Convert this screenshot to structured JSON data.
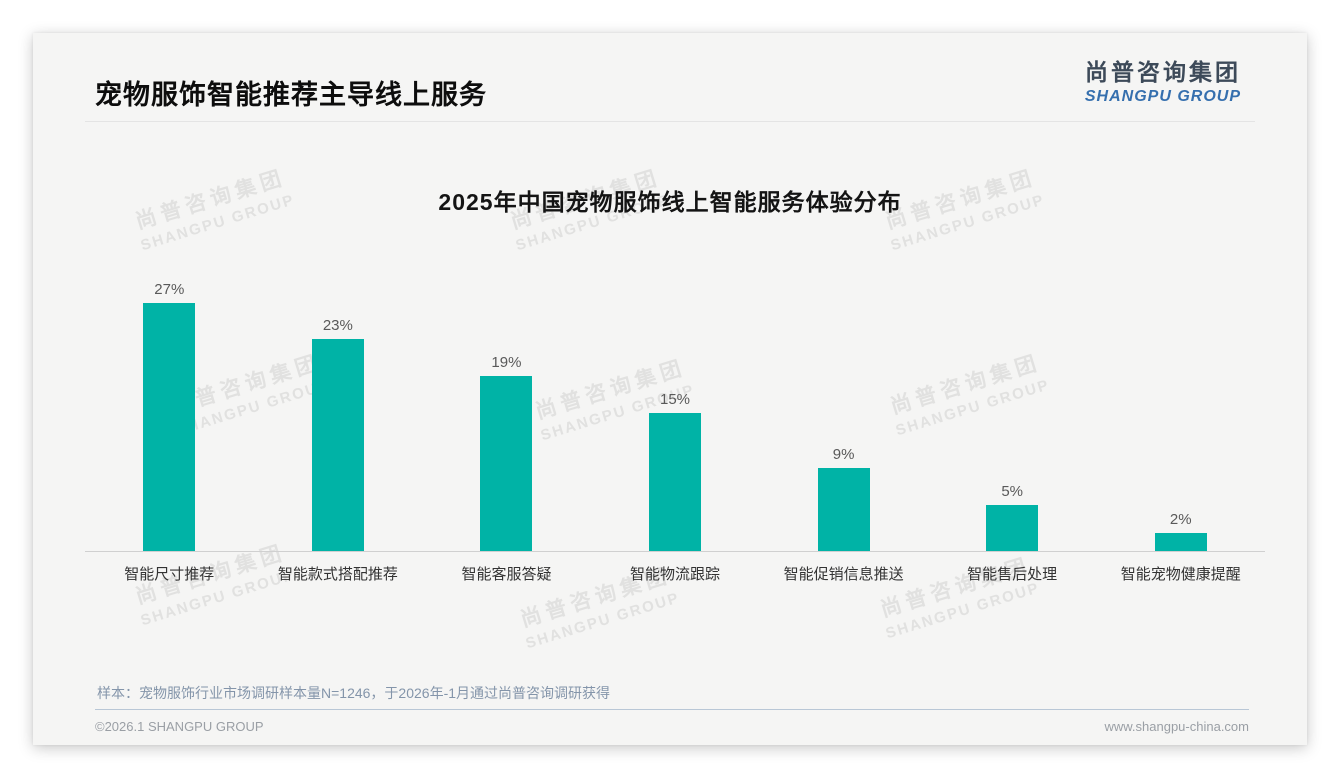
{
  "page": {
    "title": "宠物服饰智能推荐主导线上服务",
    "logo": {
      "cn": "尚普咨询集团",
      "en": "SHANGPU GROUP"
    },
    "watermark": {
      "cn": "尚普咨询集团",
      "en": "SHANGPU GROUP"
    },
    "note": "样本：宠物服饰行业市场调研样本量N=1246，于2026年-1月通过尚普咨询调研获得",
    "footer": {
      "left": "©2026.1 SHANGPU GROUP",
      "right": "www.shangpu-china.com"
    }
  },
  "chart_data": {
    "type": "bar",
    "title": "2025年中国宠物服饰线上智能服务体验分布",
    "categories": [
      "智能尺寸推荐",
      "智能款式搭配推荐",
      "智能客服答疑",
      "智能物流跟踪",
      "智能促销信息推送",
      "智能售后处理",
      "智能宠物健康提醒"
    ],
    "values": [
      27,
      23,
      19,
      15,
      9,
      5,
      2
    ],
    "value_labels": [
      "27%",
      "23%",
      "19%",
      "15%",
      "9%",
      "5%",
      "2%"
    ],
    "bar_color": "#00B3A6",
    "ylim": [
      0,
      30
    ],
    "grid": false,
    "legend": false,
    "xlabel": "",
    "ylabel": ""
  },
  "colors": {
    "accent_teal": "#00B3A6",
    "logo_cn": "#3d4a59",
    "logo_en": "#356fae",
    "note_text": "#8495aa",
    "watermark": "#e1e1e0",
    "card_bg": "#f5f5f4"
  }
}
